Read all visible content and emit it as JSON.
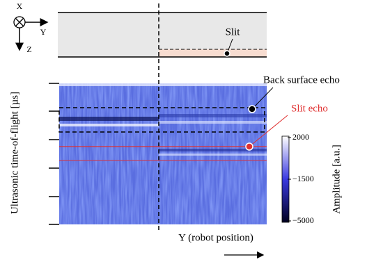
{
  "axes_icon": {
    "x": "X",
    "y": "Y",
    "z": "Z"
  },
  "schematic": {
    "slit_label": "Slit"
  },
  "plot": {
    "y_label": "Ultrasonic time-of-flight [µs]",
    "x_label": "Y (robot position)",
    "annotations": {
      "back_surface": "Back surface echo",
      "slit_echo": "Slit echo"
    }
  },
  "colorbar": {
    "label": "Amplitude [a.u.]",
    "ticks": [
      "2000",
      "−1500",
      "−5000"
    ]
  }
}
